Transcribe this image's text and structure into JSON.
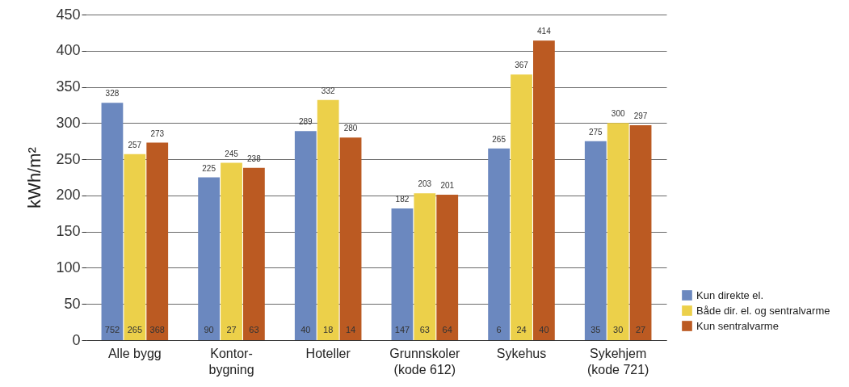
{
  "chart_data": {
    "type": "bar",
    "ylabel": "kWh/m²",
    "categories": [
      "Alle bygg",
      "Kontor-\nbygning",
      "Hoteller",
      "Grunnskoler\n(kode 612)",
      "Sykehus",
      "Sykehjem\n(kode 721)"
    ],
    "series": [
      {
        "name": "Kun direkte el.",
        "color": "#6b88bf",
        "values": [
          328,
          225,
          289,
          182,
          265,
          275
        ]
      },
      {
        "name": "Både dir. el. og sentralvarme",
        "color": "#ecd04a",
        "values": [
          257,
          245,
          332,
          203,
          367,
          300
        ]
      },
      {
        "name": "Kun sentralvarme",
        "color": "#bb5a22",
        "values": [
          273,
          238,
          280,
          201,
          414,
          297
        ]
      }
    ],
    "ylim": [
      0,
      450
    ],
    "yticks": [
      0,
      50,
      100,
      150,
      200,
      250,
      300,
      350,
      400,
      450
    ],
    "grid": "y",
    "legend": "bottom right",
    "data_labels": true,
    "annotations": [
      {
        "text": "752",
        "x": "Alle bygg",
        "y": 0
      },
      {
        "text": "265",
        "x": "Alle bygg",
        "y": 0
      },
      {
        "text": "368",
        "x": "Alle bygg",
        "y": 0
      },
      {
        "text": "90",
        "x": "Kontor-\nbygning",
        "y": 0
      },
      {
        "text": "27",
        "x": "Kontor-\nbygning",
        "y": 0
      },
      {
        "text": "63",
        "x": "Kontor-\nbygning",
        "y": 0
      },
      {
        "text": "40",
        "x": "Hoteller",
        "y": 0
      },
      {
        "text": "18",
        "x": "Hoteller",
        "y": 0
      },
      {
        "text": "14",
        "x": "Hoteller",
        "y": 0
      },
      {
        "text": "147",
        "x": "Grunnskoler\n(kode 612)",
        "y": 0
      },
      {
        "text": "63",
        "x": "Grunnskoler\n(kode 612)",
        "y": 0
      },
      {
        "text": "64",
        "x": "Grunnskoler\n(kode 612)",
        "y": 0
      },
      {
        "text": "6",
        "x": "Sykehus",
        "y": 0
      },
      {
        "text": "24",
        "x": "Sykehus",
        "y": 0
      },
      {
        "text": "40",
        "x": "Sykehus",
        "y": 0
      },
      {
        "text": "35",
        "x": "Sykehjem\n(kode 721)",
        "y": 0
      },
      {
        "text": "30",
        "x": "Sykehjem\n(kode 721)",
        "y": 0
      },
      {
        "text": "27",
        "x": "Sykehjem\n(kode 721)",
        "y": 0
      }
    ]
  }
}
